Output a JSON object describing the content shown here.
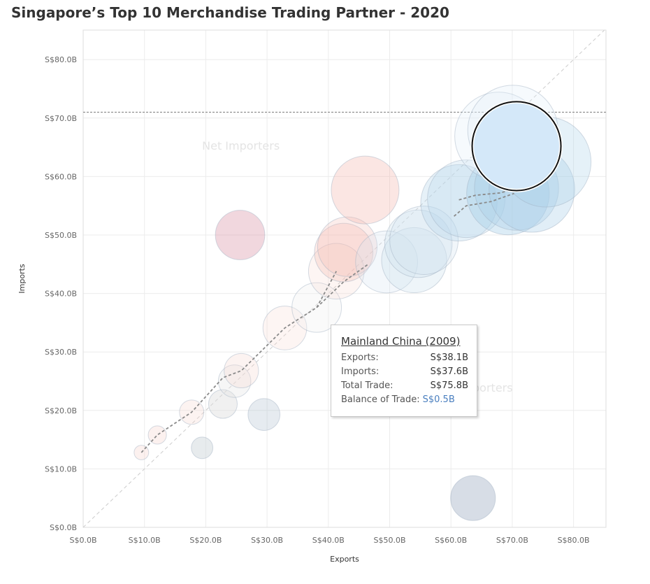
{
  "title": "Singapore’s Top 10 Merchandise Trading Partner - 2020",
  "chart_data": {
    "type": "scatter",
    "xlabel": "Exports",
    "ylabel": "Imports",
    "xlim": [
      0,
      85
    ],
    "ylim": [
      0,
      85
    ],
    "x_ticks": [
      0,
      10,
      20,
      30,
      40,
      50,
      60,
      70,
      80
    ],
    "y_ticks": [
      0,
      10,
      20,
      30,
      40,
      50,
      60,
      70,
      80
    ],
    "x_tick_labels": [
      "S$0.0B",
      "S$10.0B",
      "S$20.0B",
      "S$30.0B",
      "S$40.0B",
      "S$50.0B",
      "S$60.0B",
      "S$70.0B",
      "S$80.0B"
    ],
    "y_tick_labels": [
      "S$0.0B",
      "S$10.0B",
      "S$20.0B",
      "S$30.0B",
      "S$40.0B",
      "S$50.0B",
      "S$60.0B",
      "S$70.0B",
      "S$80.0B"
    ],
    "grid": true,
    "reference_line_y": 71,
    "diagonal_line": true,
    "region_labels": {
      "upper": "Net Importers",
      "lower": "Net Exporters"
    },
    "bubbles": [
      {
        "x": 9.5,
        "y": 12.8,
        "size": 22.3,
        "color": "#f6d6d1",
        "opacity": 0.35
      },
      {
        "x": 12.1,
        "y": 15.8,
        "size": 27.9,
        "color": "#f6d6d1",
        "opacity": 0.35
      },
      {
        "x": 17.7,
        "y": 19.7,
        "size": 37.4,
        "color": "#f6d6d1",
        "opacity": 0.3
      },
      {
        "x": 19.4,
        "y": 13.6,
        "size": 33.0,
        "color": "#c9d2d6",
        "opacity": 0.45
      },
      {
        "x": 22.8,
        "y": 21.1,
        "size": 43.9,
        "color": "#dddddd",
        "opacity": 0.45
      },
      {
        "x": 24.7,
        "y": 25.0,
        "size": 49.7,
        "color": "#e5e5e5",
        "opacity": 0.35
      },
      {
        "x": 25.8,
        "y": 26.8,
        "size": 52.6,
        "color": "#f6d6d1",
        "opacity": 0.3
      },
      {
        "x": 25.6,
        "y": 50.0,
        "size": 75.6,
        "color": "#cc6e87",
        "opacity": 0.28
      },
      {
        "x": 29.5,
        "y": 19.3,
        "size": 48.8,
        "color": "#b8c6d3",
        "opacity": 0.35
      },
      {
        "x": 32.9,
        "y": 34.1,
        "size": 67.0,
        "color": "#f6d6d1",
        "opacity": 0.25
      },
      {
        "x": 38.1,
        "y": 37.6,
        "size": 75.8,
        "color": "#f2f2f2",
        "opacity": 0.35
      },
      {
        "x": 41.3,
        "y": 43.8,
        "size": 85.1,
        "color": "#f6d6d1",
        "opacity": 0.25
      },
      {
        "x": 42.5,
        "y": 47.0,
        "size": 89.5,
        "color": "#f4b8b0",
        "opacity": 0.3
      },
      {
        "x": 43.1,
        "y": 48.0,
        "size": 91.1,
        "color": "#f4b8b0",
        "opacity": 0.25
      },
      {
        "x": 46.0,
        "y": 57.7,
        "size": 103.7,
        "color": "#f4b8b0",
        "opacity": 0.35
      },
      {
        "x": 49.5,
        "y": 45.4,
        "size": 94.9,
        "color": "#d6e6f3",
        "opacity": 0.3
      },
      {
        "x": 54.0,
        "y": 45.7,
        "size": 99.7,
        "color": "#cfe2ef",
        "opacity": 0.35
      },
      {
        "x": 54.7,
        "y": 48.5,
        "size": 103.2,
        "color": "#cfe2ef",
        "opacity": 0.35
      },
      {
        "x": 55.6,
        "y": 49.1,
        "size": 104.7,
        "color": "#cfe2ef",
        "opacity": 0.3
      },
      {
        "x": 61.3,
        "y": 55.5,
        "size": 116.8,
        "color": "#b8d7ec",
        "opacity": 0.35
      },
      {
        "x": 62.5,
        "y": 56.2,
        "size": 118.7,
        "color": "#b8d7ec",
        "opacity": 0.3
      },
      {
        "x": 69.3,
        "y": 57.1,
        "size": 126.4,
        "color": "#a8cfe9",
        "opacity": 0.4
      },
      {
        "x": 70.7,
        "y": 58.0,
        "size": 128.7,
        "color": "#a8cfe9",
        "opacity": 0.35
      },
      {
        "x": 73.2,
        "y": 57.8,
        "size": 131.0,
        "color": "#a8cfe9",
        "opacity": 0.35
      },
      {
        "x": 75.5,
        "y": 62.5,
        "size": 138.0,
        "color": "#a8cfe9",
        "opacity": 0.3
      },
      {
        "x": 67.8,
        "y": 66.9,
        "size": 134.7,
        "color": "#e2eef7",
        "opacity": 0.3
      },
      {
        "x": 70.1,
        "y": 67.9,
        "size": 138.0,
        "color": "#e2eef7",
        "opacity": 0.3
      },
      {
        "x": 63.6,
        "y": 5.0,
        "size": 68.6,
        "color": "#a7b4c8",
        "opacity": 0.45
      }
    ],
    "highlight": {
      "x": 70.7,
      "y": 65.2,
      "size": 135.9,
      "color": "#d4e8f9"
    },
    "trails": [
      [
        [
          9.5,
          12.8
        ],
        [
          12.1,
          15.8
        ],
        [
          17.7,
          19.7
        ],
        [
          22.8,
          25.6
        ],
        [
          25.8,
          26.8
        ],
        [
          32.9,
          34.1
        ],
        [
          38.1,
          37.6
        ],
        [
          41.3,
          43.8
        ]
      ],
      [
        [
          38.1,
          37.6
        ],
        [
          42.5,
          42.0
        ],
        [
          46.5,
          45.0
        ]
      ],
      [
        [
          60.5,
          53.2
        ],
        [
          62.5,
          55.0
        ],
        [
          66.5,
          55.7
        ],
        [
          70.3,
          57.1
        ]
      ],
      [
        [
          61.3,
          56.0
        ],
        [
          64.0,
          56.8
        ],
        [
          68.0,
          57.2
        ],
        [
          71.0,
          58.0
        ]
      ]
    ]
  },
  "tooltip": {
    "title": "Mainland China (2009)",
    "rows": [
      {
        "label": "Exports:",
        "value": "S$38.1B"
      },
      {
        "label": "Imports:",
        "value": "S$37.6B"
      },
      {
        "label": "Total Trade:",
        "value": "S$75.8B"
      },
      {
        "label": "Balance of Trade:",
        "value": "S$0.5B"
      }
    ]
  }
}
